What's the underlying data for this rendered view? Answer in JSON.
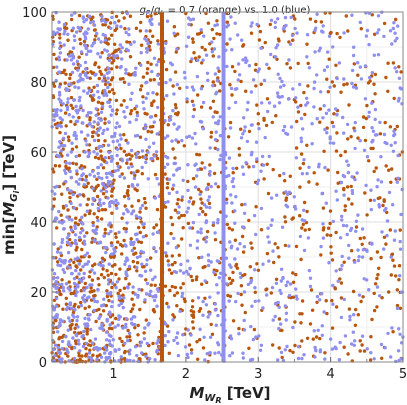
{
  "chart_data": {
    "type": "scatter",
    "title_parts": {
      "g1": "g",
      "g1_sub": "R",
      "slash": "/",
      "g2": "g",
      "g2_sub": "L",
      "rest": " = 0.7 (orange) vs. 1.0 (blue)"
    },
    "xlabel_parts": {
      "main": "M",
      "sub1": "W",
      "sub2": "R",
      "unit": " [TeV]"
    },
    "ylabel_parts": {
      "pre": "min[",
      "main": "M",
      "sub1": "G",
      "sub2": "i",
      "post": "] [TeV]"
    },
    "xlim": [
      0.15,
      5.0
    ],
    "ylim": [
      0,
      100
    ],
    "x_ticks": [
      {
        "value": 1,
        "label": "1"
      },
      {
        "value": 2,
        "label": "2"
      },
      {
        "value": 3,
        "label": "3"
      },
      {
        "value": 4,
        "label": "4"
      },
      {
        "value": 5,
        "label": "5"
      }
    ],
    "y_ticks": [
      {
        "value": 0,
        "label": "0"
      },
      {
        "value": 20,
        "label": "20"
      },
      {
        "value": 40,
        "label": "40"
      },
      {
        "value": 60,
        "label": "60"
      },
      {
        "value": 80,
        "label": "80"
      },
      {
        "value": 100,
        "label": "100"
      }
    ],
    "grid": true,
    "vertical_lines": [
      {
        "name": "orange",
        "x": 1.67,
        "color": "#b8560e"
      },
      {
        "name": "blue",
        "x": 2.52,
        "color": "#8f90ee"
      }
    ],
    "series": [
      {
        "color": "#b8560e",
        "approx_count": 1400,
        "x_density": [
          [
            0.15,
            1.0,
            1.0
          ],
          [
            1.0,
            1.7,
            0.55
          ],
          [
            1.7,
            2.5,
            0.4
          ],
          [
            2.5,
            5.0,
            0.25
          ]
        ],
        "y_bias_low": 0.35
      },
      {
        "color": "#8f90ee",
        "approx_count": 1600,
        "x_density": [
          [
            0.15,
            1.0,
            1.0
          ],
          [
            1.0,
            1.7,
            0.55
          ],
          [
            1.7,
            2.5,
            0.45
          ],
          [
            2.5,
            5.0,
            0.3
          ]
        ],
        "y_bias_low": 0.25
      }
    ]
  }
}
